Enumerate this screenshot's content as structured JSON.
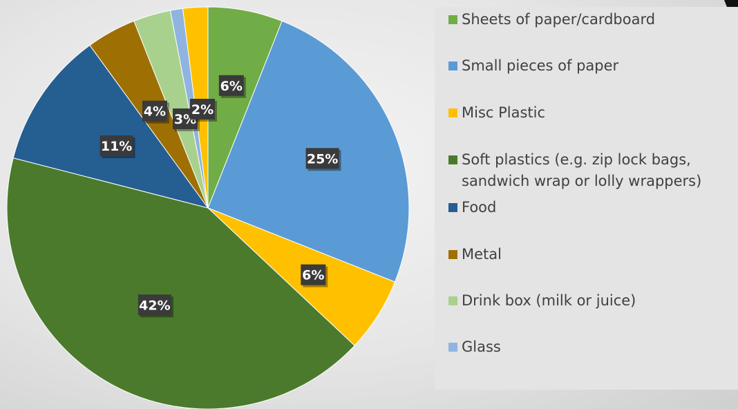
{
  "chart_data": {
    "type": "pie",
    "start_angle_deg": 0,
    "direction": "clockwise",
    "categories": [
      "Sheets of paper/cardboard",
      "Small pieces of paper",
      "Misc Plastic",
      "Soft plastics (e.g. zip lock bags, sandwich wrap or lolly wrappers)",
      "Food",
      "Metal",
      "Drink box (milk or juice)",
      "Glass",
      "Misc Plastic"
    ],
    "values": [
      6,
      25,
      6,
      42,
      11,
      4,
      3,
      1,
      2
    ],
    "data_labels": [
      "6%",
      "25%",
      "6%",
      "42%",
      "11%",
      "4%",
      "3%",
      "",
      "2%"
    ],
    "colors": [
      "#70ad47",
      "#5b9bd5",
      "#ffc000",
      "#4b7a2c",
      "#255e91",
      "#9e7004",
      "#a9d18e",
      "#8fb4e0",
      "#ffc000"
    ],
    "legend_position": "right",
    "legend": [
      {
        "label": "Sheets of paper/cardboard",
        "color": "#70ad47"
      },
      {
        "label": "Small pieces of paper",
        "color": "#5b9bd5"
      },
      {
        "label": "Misc Plastic",
        "color": "#ffc000"
      },
      {
        "label": "Soft plastics (e.g. zip lock bags,\nsandwich wrap or lolly wrappers)",
        "color": "#4b7a2c"
      },
      {
        "label": "Food",
        "color": "#255e91"
      },
      {
        "label": "Metal",
        "color": "#9e7004"
      },
      {
        "label": "Drink box (milk or juice)",
        "color": "#a9d18e"
      },
      {
        "label": "Glass",
        "color": "#8fb4e0"
      }
    ]
  }
}
